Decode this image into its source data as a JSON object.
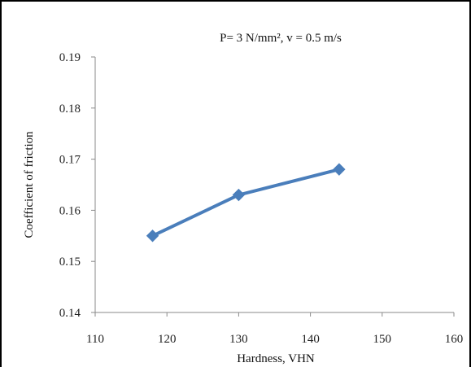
{
  "chart_data": {
    "type": "line",
    "title": "P= 3 N/mm², v = 0.5 m/s",
    "xlabel": "Hardness, VHN",
    "ylabel": "Coefficient of friction",
    "xlim": [
      110,
      160
    ],
    "ylim": [
      0.14,
      0.19
    ],
    "xticks": [
      "110",
      "120",
      "130",
      "140",
      "150",
      "160"
    ],
    "yticks": [
      "0.14",
      "0.15",
      "0.16",
      "0.17",
      "0.18",
      "0.19"
    ],
    "grid": false,
    "legend": "none",
    "series": [
      {
        "color": "#4a7ebb",
        "marker": "diamond",
        "x": [
          118,
          130,
          144
        ],
        "y": [
          0.155,
          0.163,
          0.168
        ]
      }
    ]
  }
}
